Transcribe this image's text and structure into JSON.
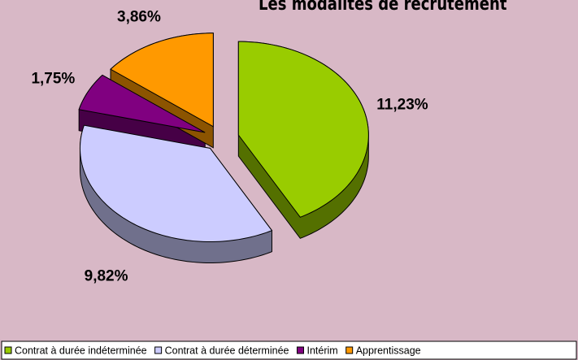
{
  "chart_data": {
    "type": "pie",
    "title": "Les modalités de recrutement",
    "categories": [
      "Contrat à durée indéterminée",
      "Contrat à durée déterminée",
      "Intérim",
      "Apprentissage"
    ],
    "values": [
      11.23,
      9.82,
      1.75,
      3.86
    ],
    "value_labels": [
      "11,23%",
      "9,82%",
      "1,75%",
      "3,86%"
    ],
    "colors": [
      "#99cc00",
      "#ccccff",
      "#800080",
      "#ff9900"
    ],
    "legend": "bottom"
  }
}
